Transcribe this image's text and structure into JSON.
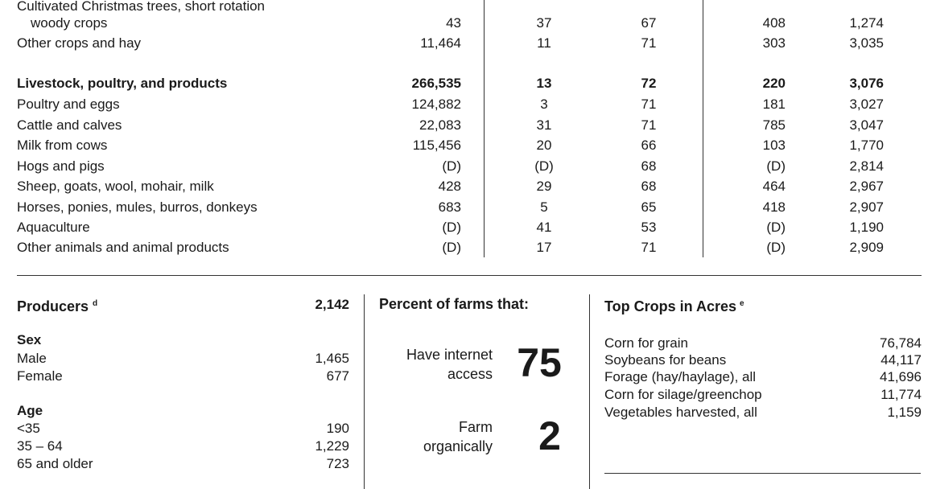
{
  "table": {
    "rows": [
      {
        "label": "Cultivated Christmas trees, short rotation",
        "bold": false,
        "indent": false,
        "c1": "",
        "c2": "",
        "c3": "",
        "c4": "",
        "c5": "",
        "y": 0
      },
      {
        "label": "woody crops",
        "bold": false,
        "indent": true,
        "c1": "43",
        "c2": "37",
        "c3": "67",
        "c4": "408",
        "c5": "1,274"
      },
      {
        "label": "Other crops and hay",
        "bold": false,
        "indent": false,
        "c1": "11,464",
        "c2": "11",
        "c3": "71",
        "c4": "303",
        "c5": "3,035"
      },
      {
        "label": "Livestock, poultry, and products",
        "bold": true,
        "indent": false,
        "c1": "266,535",
        "c2": "13",
        "c3": "72",
        "c4": "220",
        "c5": "3,076"
      },
      {
        "label": "Poultry and eggs",
        "bold": false,
        "indent": false,
        "c1": "124,882",
        "c2": "3",
        "c3": "71",
        "c4": "181",
        "c5": "3,027"
      },
      {
        "label": "Cattle and calves",
        "bold": false,
        "indent": false,
        "c1": "22,083",
        "c2": "31",
        "c3": "71",
        "c4": "785",
        "c5": "3,047"
      },
      {
        "label": "Milk from cows",
        "bold": false,
        "indent": false,
        "c1": "115,456",
        "c2": "20",
        "c3": "66",
        "c4": "103",
        "c5": "1,770"
      },
      {
        "label": "Hogs and pigs",
        "bold": false,
        "indent": false,
        "c1": "(D)",
        "c2": "(D)",
        "c3": "68",
        "c4": "(D)",
        "c5": "2,814"
      },
      {
        "label": "Sheep, goats, wool, mohair, milk",
        "bold": false,
        "indent": false,
        "c1": "428",
        "c2": "29",
        "c3": "68",
        "c4": "464",
        "c5": "2,967"
      },
      {
        "label": "Horses, ponies, mules, burros, donkeys",
        "bold": false,
        "indent": false,
        "c1": "683",
        "c2": "5",
        "c3": "65",
        "c4": "418",
        "c5": "2,907"
      },
      {
        "label": "Aquaculture",
        "bold": false,
        "indent": false,
        "c1": "(D)",
        "c2": "41",
        "c3": "53",
        "c4": "(D)",
        "c5": "1,190"
      },
      {
        "label": "Other animals and animal products",
        "bold": false,
        "indent": false,
        "c1": "(D)",
        "c2": "17",
        "c3": "71",
        "c4": "(D)",
        "c5": "2,909"
      }
    ]
  },
  "producers": {
    "title": "Producers",
    "note": "d",
    "total": "2,142",
    "sex_heading": "Sex",
    "male_label": "Male",
    "male_value": "1,465",
    "female_label": "Female",
    "female_value": "677",
    "age_heading": "Age",
    "age_lt35_label": "<35",
    "age_lt35_value": "190",
    "age_35_64_label": "35 – 64",
    "age_35_64_value": "1,229",
    "age_65_label": "65 and older",
    "age_65_value": "723"
  },
  "percent_farms": {
    "title": "Percent of farms that:",
    "internet_line1": "Have internet",
    "internet_line2": "access",
    "internet_value": "75",
    "organic_line1": "Farm",
    "organic_line2": "organically",
    "organic_value": "2"
  },
  "top_crops": {
    "title": "Top Crops in Acres",
    "note": "e",
    "items": [
      {
        "label": "Corn for grain",
        "value": "76,784"
      },
      {
        "label": "Soybeans for beans",
        "value": "44,117"
      },
      {
        "label": "Forage (hay/haylage), all",
        "value": "41,696"
      },
      {
        "label": "Corn for silage/greenchop",
        "value": "11,774"
      },
      {
        "label": "Vegetables harvested, all",
        "value": "1,159"
      }
    ]
  }
}
